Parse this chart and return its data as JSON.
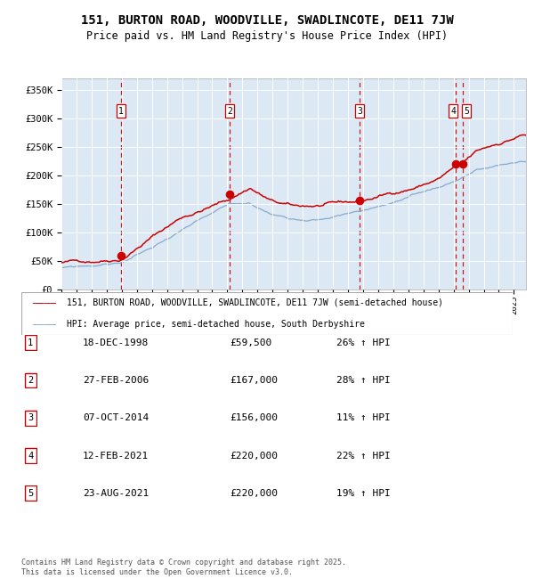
{
  "title": "151, BURTON ROAD, WOODVILLE, SWADLINCOTE, DE11 7JW",
  "subtitle": "Price paid vs. HM Land Registry's House Price Index (HPI)",
  "title_fontsize": 10,
  "subtitle_fontsize": 8.5,
  "background_color": "#ffffff",
  "plot_bg_color": "#dce9f5",
  "red_line_color": "#cc0000",
  "blue_line_color": "#88aacc",
  "dashed_line_color": "#cc0000",
  "ylim": [
    0,
    370000
  ],
  "ytick_labels": [
    "£0",
    "£50K",
    "£100K",
    "£150K",
    "£200K",
    "£250K",
    "£300K",
    "£350K"
  ],
  "ytick_values": [
    0,
    50000,
    100000,
    150000,
    200000,
    250000,
    300000,
    350000
  ],
  "legend_label_red": "151, BURTON ROAD, WOODVILLE, SWADLINCOTE, DE11 7JW (semi-detached house)",
  "legend_label_blue": "HPI: Average price, semi-detached house, South Derbyshire",
  "sale_dates_x": [
    1998.96,
    2006.15,
    2014.77,
    2021.11,
    2021.64
  ],
  "sale_prices_y": [
    59500,
    167000,
    156000,
    220000,
    220000
  ],
  "sale_labels": [
    "1",
    "2",
    "3",
    "4",
    "5"
  ],
  "dashed_x": [
    1998.96,
    2006.15,
    2014.77,
    2021.11,
    2021.64
  ],
  "table_rows": [
    [
      "1",
      "18-DEC-1998",
      "£59,500",
      "26% ↑ HPI"
    ],
    [
      "2",
      "27-FEB-2006",
      "£167,000",
      "28% ↑ HPI"
    ],
    [
      "3",
      "07-OCT-2014",
      "£156,000",
      "11% ↑ HPI"
    ],
    [
      "4",
      "12-FEB-2021",
      "£220,000",
      "22% ↑ HPI"
    ],
    [
      "5",
      "23-AUG-2021",
      "£220,000",
      "19% ↑ HPI"
    ]
  ],
  "footer_text": "Contains HM Land Registry data © Crown copyright and database right 2025.\nThis data is licensed under the Open Government Licence v3.0.",
  "xmin": 1995.0,
  "xmax": 2025.8,
  "key_t_red": [
    1995.0,
    1997.0,
    1998.96,
    2001.0,
    2003.0,
    2006.15,
    2007.5,
    2009.0,
    2010.5,
    2012.0,
    2014.77,
    2016.5,
    2018.5,
    2020.0,
    2021.11,
    2021.64,
    2022.5,
    2024.0,
    2025.5
  ],
  "key_v_red": [
    47000,
    51000,
    59500,
    100000,
    135000,
    167000,
    188000,
    163000,
    152000,
    153000,
    156000,
    168000,
    183000,
    198000,
    218000,
    222000,
    240000,
    255000,
    270000
  ],
  "key_t_blue": [
    1995.0,
    1997.0,
    1998.96,
    2001.0,
    2003.0,
    2006.15,
    2007.5,
    2009.0,
    2010.5,
    2012.0,
    2014.77,
    2016.5,
    2018.5,
    2020.0,
    2021.11,
    2022.5,
    2023.5,
    2025.5
  ],
  "key_v_blue": [
    37000,
    41000,
    47000,
    73000,
    105000,
    143000,
    146000,
    127000,
    122000,
    124000,
    138000,
    151000,
    164000,
    177000,
    190000,
    210000,
    213000,
    223000
  ]
}
